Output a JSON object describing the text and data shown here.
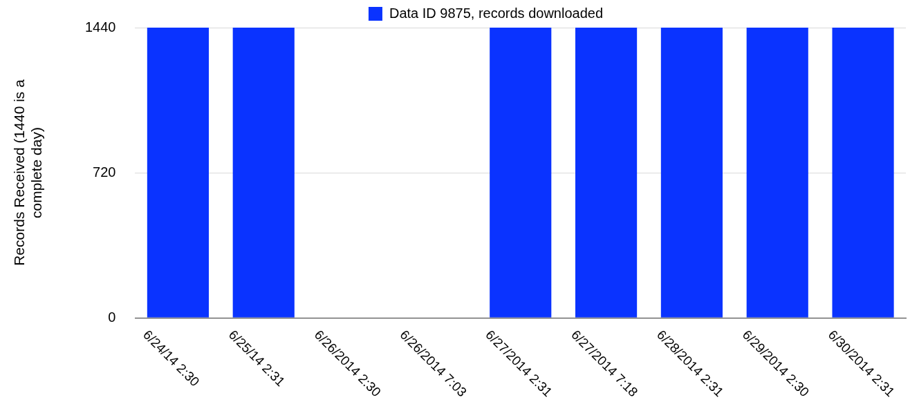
{
  "chart_data": {
    "type": "bar",
    "categories": [
      "6/24/14 2:30",
      "6/25/14 2:31",
      "6/26/2014 2:30",
      "6/26/2014 7:03",
      "6/27/2014 2:31",
      "6/27/2014 7:18",
      "6/28/2014 2:31",
      "6/29/2014 2:30",
      "6/30/2014 2:31"
    ],
    "series": [
      {
        "name": "Data ID 9875, records downloaded",
        "color": "#0a33ff",
        "values": [
          1440,
          1440,
          0,
          0,
          1440,
          1440,
          1440,
          1440,
          1440
        ]
      }
    ],
    "ylabel": "Records Received (1440 is a complete day)",
    "ylim": [
      0,
      1440
    ],
    "yticks": [
      0,
      720,
      1440
    ],
    "grid": "y",
    "legend": "top"
  }
}
